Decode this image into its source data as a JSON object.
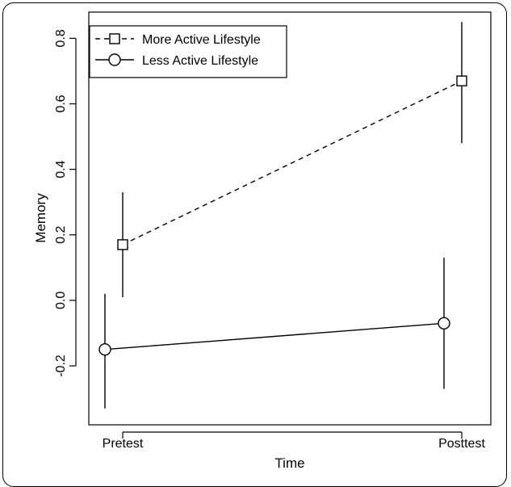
{
  "chart_data": {
    "type": "line",
    "categories": [
      "Pretest",
      "Posttest"
    ],
    "xlabel": "Time",
    "ylabel": "Memory",
    "ylim": [
      -0.38,
      0.88
    ],
    "yticks": [
      -0.2,
      0.0,
      0.2,
      0.4,
      0.6,
      0.8
    ],
    "ytick_labels": [
      "-0.2",
      "0.0",
      "0.2",
      "0.4",
      "0.6",
      "0.8"
    ],
    "legend_position": "top-left",
    "grid": false,
    "series": [
      {
        "name": "More Active Lifestyle",
        "marker": "square",
        "line_style": "dashed",
        "values": [
          0.17,
          0.67
        ],
        "ci_low": [
          0.01,
          0.48
        ],
        "ci_high": [
          0.33,
          0.85
        ]
      },
      {
        "name": "Less Active Lifestyle",
        "marker": "circle",
        "line_style": "solid",
        "values": [
          -0.15,
          -0.07
        ],
        "ci_low": [
          -0.33,
          -0.27
        ],
        "ci_high": [
          0.02,
          0.13
        ]
      }
    ]
  }
}
